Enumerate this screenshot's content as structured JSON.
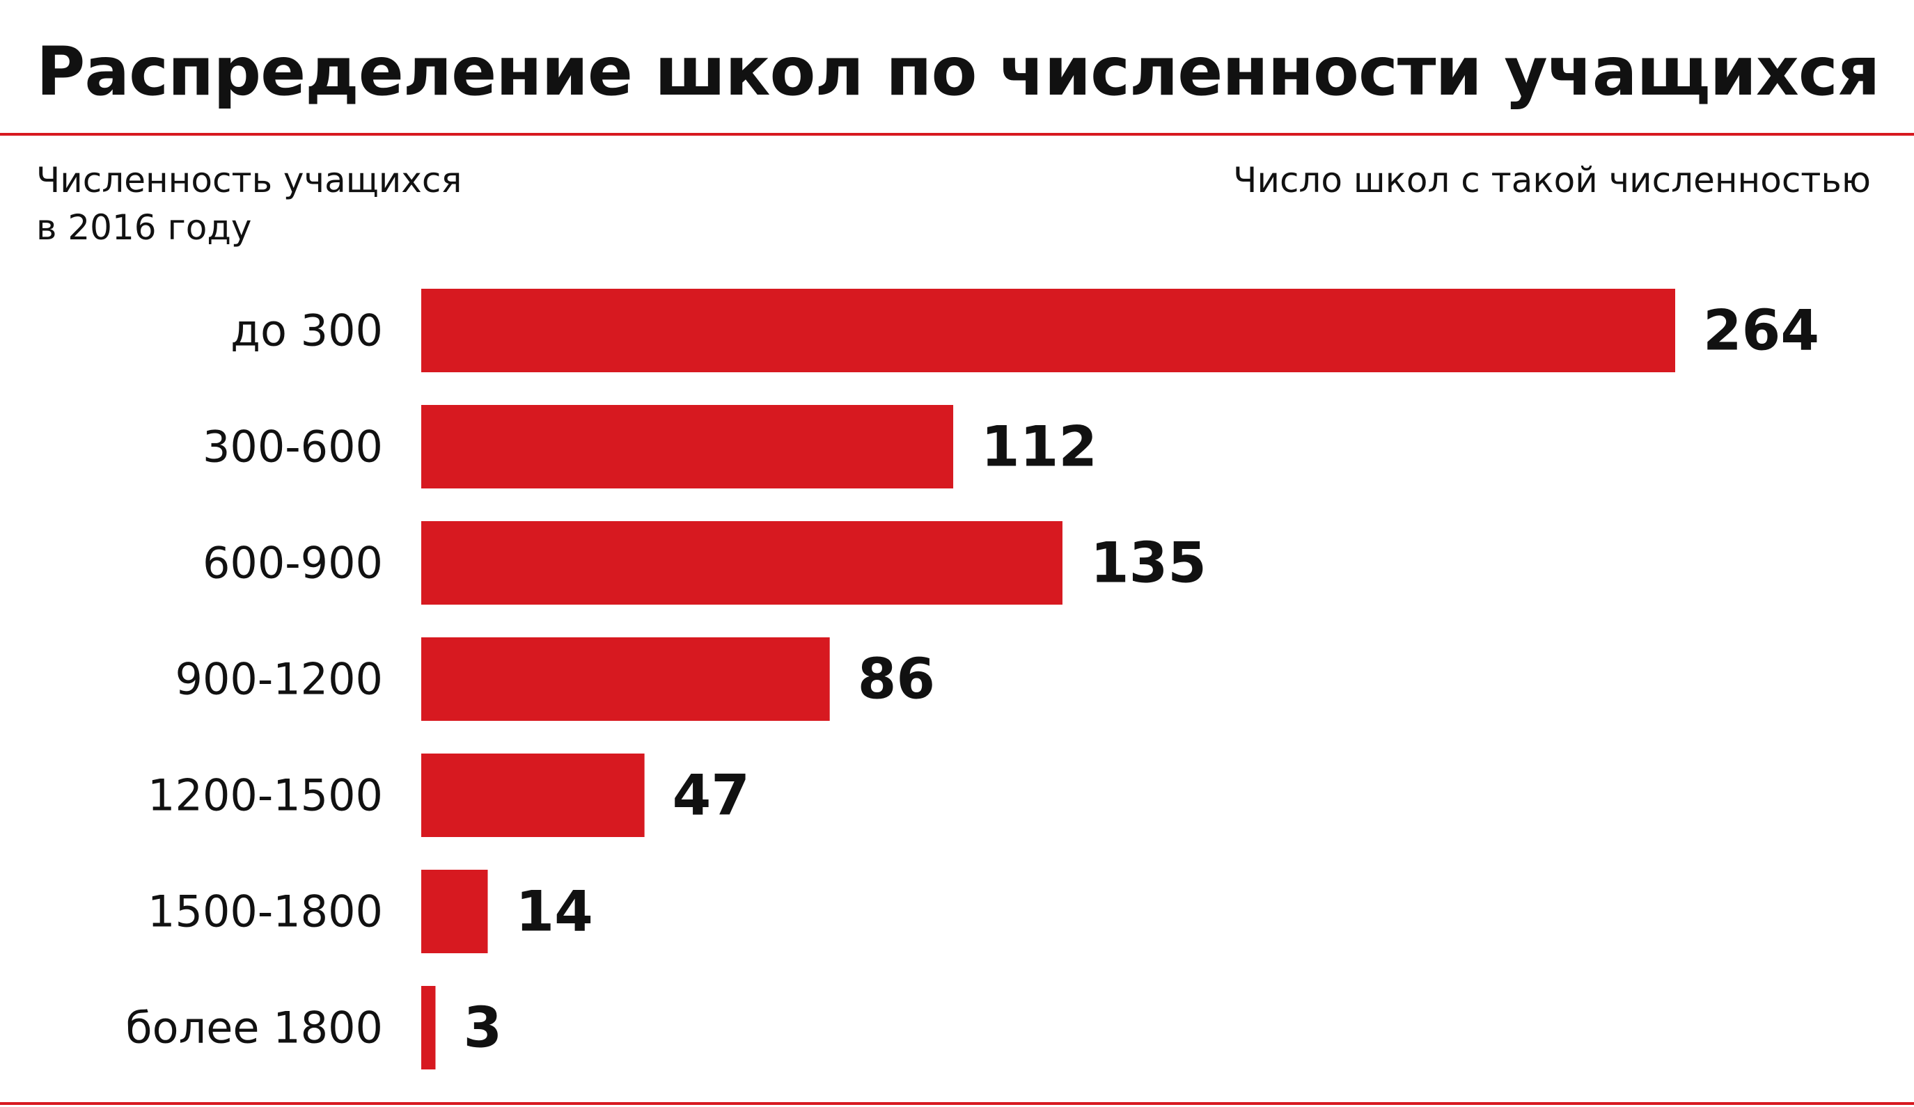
{
  "title": "Распределение школ по численности учащихся",
  "colors": {
    "bar": "#D71920",
    "rule": "#D71920",
    "text": "#111111"
  },
  "chart_data": {
    "type": "bar",
    "orientation": "horizontal",
    "title": "Распределение школ по численности учащихся",
    "y_axis_title_lines": [
      "Численность учащихся",
      "в 2016 году"
    ],
    "x_axis_title": "Число школ с такой численностью",
    "categories": [
      "до 300",
      "300-600",
      "600-900",
      "900-1200",
      "1200-1500",
      "1500-1800",
      "более 1800"
    ],
    "values": [
      264,
      112,
      135,
      86,
      47,
      14,
      3
    ],
    "data_labels": [
      "264",
      "112",
      "135",
      "86",
      "47",
      "14",
      "3"
    ],
    "xlim": [
      0,
      264
    ],
    "grid": false,
    "legend": "none"
  }
}
